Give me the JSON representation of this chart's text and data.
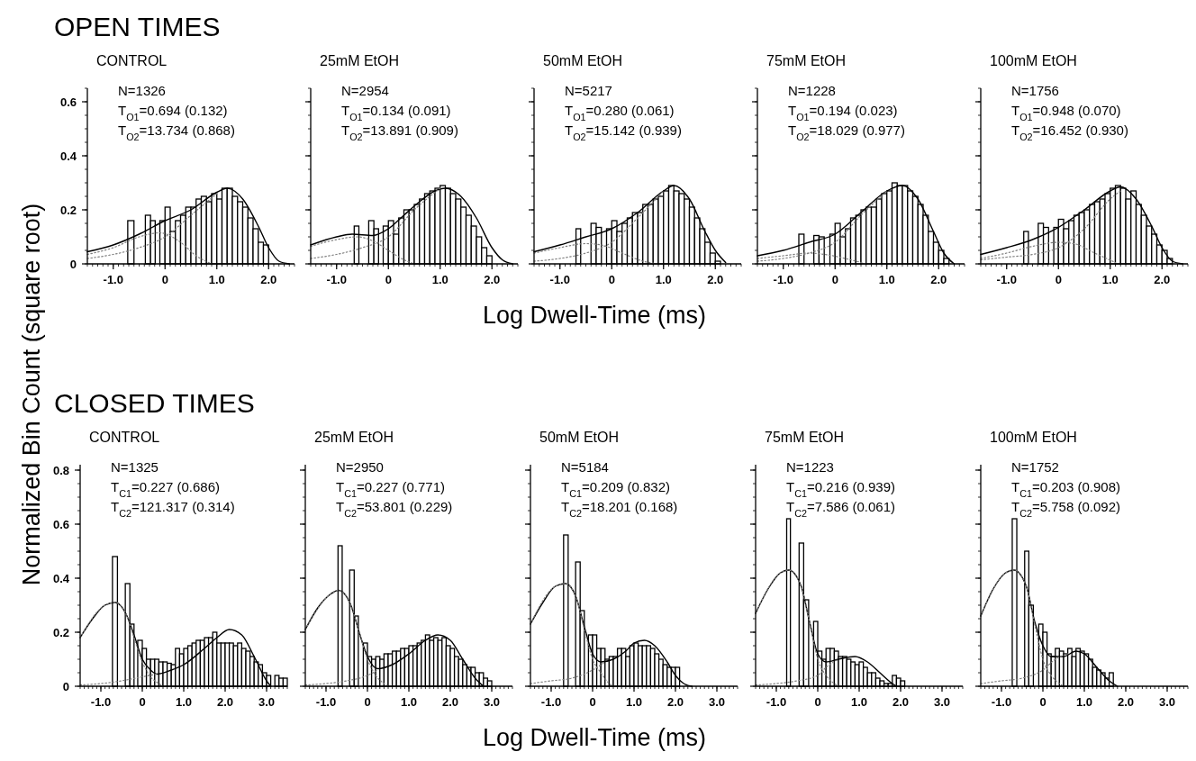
{
  "chart_data": [
    {
      "type": "histogram",
      "title": "OPEN TIMES",
      "subtitle": "CONTROL",
      "ylabel": "Normalized Bin Count (square root)",
      "annotations": [
        "N=1326",
        "T$_{O1}$=0.694 (0.132)",
        "T$_{O2}$=13.734 (0.868)"
      ],
      "xlim": [
        -1.5,
        2.5
      ],
      "xticks": [
        {
          "value": -1,
          "label": "-1.0"
        },
        {
          "value": 0,
          "label": "0"
        },
        {
          "value": 1,
          "label": "1.0"
        },
        {
          "value": 2,
          "label": "2.0"
        }
      ],
      "ylim": [
        0,
        0.65
      ],
      "yticks": [
        0,
        0.2,
        0.4,
        0.6
      ],
      "series": [
        {
          "color": "#000000",
          "bins": [
            -0.72,
            -0.6,
            -0.38,
            -0.28,
            -0.19,
            -0.1,
            0,
            0.1,
            0.2,
            0.3,
            0.4,
            0.5,
            0.6,
            0.7,
            0.8,
            0.9,
            1.0,
            1.1,
            1.2,
            1.3,
            1.4,
            1.5,
            1.6,
            1.7,
            1.8,
            1.9,
            2.0
          ],
          "values": [
            0.16,
            0,
            0.18,
            0.16,
            0,
            0.16,
            0.21,
            0.12,
            0.16,
            0.18,
            0.21,
            0.21,
            0.24,
            0.25,
            0.23,
            0.26,
            0.24,
            0.28,
            0.28,
            0.25,
            0.23,
            0.21,
            0.17,
            0.13,
            0.08,
            0.07
          ]
        },
        {
          "type": "line",
          "color": "#000000",
          "line_style": "solid",
          "x": [
            -1.5,
            -1.0,
            -0.5,
            0,
            0.5,
            1.0,
            1.2,
            1.5,
            1.8,
            2.0,
            2.2,
            2.4
          ],
          "values": [
            0.045,
            0.07,
            0.11,
            0.16,
            0.2,
            0.265,
            0.28,
            0.24,
            0.14,
            0.06,
            0.01,
            0
          ]
        },
        {
          "type": "line",
          "color": "#808080",
          "line_style": "dotted",
          "x": [
            -1.5,
            -1.0,
            -0.5,
            -0.1,
            0.3,
            0.6,
            0.9
          ],
          "values": [
            0.035,
            0.06,
            0.1,
            0.115,
            0.08,
            0.03,
            0
          ]
        },
        {
          "type": "line",
          "color": "#808080",
          "line_style": "dotted",
          "x": [
            -1.5,
            -1.0,
            -0.5,
            0,
            0.5,
            1.0
          ],
          "values": [
            0.02,
            0.035,
            0.06,
            0.1,
            0.18,
            0.26
          ]
        }
      ]
    },
    {
      "type": "histogram",
      "title": "25mM EtOH",
      "annotations": [
        "N=2954",
        "T$_{O1}$=0.134 (0.091)",
        "T$_{O2}$=13.891 (0.909)"
      ],
      "xlim": [
        -1.5,
        2.5
      ],
      "xticks": [
        {
          "value": -1,
          "label": "-1.0"
        },
        {
          "value": 0,
          "label": "0"
        },
        {
          "value": 1,
          "label": "1.0"
        },
        {
          "value": 2,
          "label": "2.0"
        }
      ],
      "ylim": [
        0,
        0.65
      ],
      "yticks": [
        0,
        0.2,
        0.4,
        0.6
      ],
      "tick_labels": "x",
      "series": [
        {
          "color": "#000000",
          "bins": [
            -0.66,
            -0.57,
            -0.38,
            -0.28,
            -0.19,
            -0.1,
            0,
            0.1,
            0.2,
            0.3,
            0.4,
            0.5,
            0.6,
            0.7,
            0.8,
            0.9,
            1.0,
            1.1,
            1.2,
            1.3,
            1.4,
            1.5,
            1.6,
            1.7,
            1.8,
            1.9,
            2.0
          ],
          "values": [
            0.14,
            0,
            0.16,
            0.13,
            0,
            0.14,
            0.16,
            0.11,
            0.17,
            0.2,
            0.2,
            0.22,
            0.24,
            0.26,
            0.27,
            0.28,
            0.29,
            0.28,
            0.26,
            0.24,
            0.21,
            0.18,
            0.14,
            0.1,
            0.06,
            0.03
          ]
        },
        {
          "type": "line",
          "color": "#000000",
          "line_style": "solid",
          "x": [
            -1.5,
            -1.0,
            -0.7,
            -0.3,
            0,
            0.3,
            0.6,
            0.9,
            1.1,
            1.4,
            1.7,
            2.0,
            2.2,
            2.4
          ],
          "values": [
            0.07,
            0.1,
            0.11,
            0.105,
            0.13,
            0.18,
            0.23,
            0.27,
            0.28,
            0.25,
            0.17,
            0.06,
            0.015,
            0
          ]
        },
        {
          "type": "line",
          "color": "#808080",
          "line_style": "dotted",
          "x": [
            -1.5,
            -1.0,
            -0.6,
            -0.3,
            0,
            0.3,
            0.5
          ],
          "values": [
            0.065,
            0.09,
            0.1,
            0.085,
            0.05,
            0.015,
            0
          ]
        },
        {
          "type": "line",
          "color": "#808080",
          "line_style": "dotted",
          "x": [
            -1.5,
            -1.0,
            -0.5,
            0,
            0.5,
            1.0
          ],
          "values": [
            0.02,
            0.035,
            0.06,
            0.1,
            0.2,
            0.28
          ]
        }
      ]
    },
    {
      "type": "histogram",
      "title": "50mM EtOH",
      "xlabel": "Log Dwell-Time (ms)",
      "annotations": [
        "N=5217",
        "T$_{O1}$=0.280 (0.061)",
        "T$_{O2}$=15.142 (0.939)"
      ],
      "xlim": [
        -1.5,
        2.5
      ],
      "xticks": [
        {
          "value": -1,
          "label": "-1.0"
        },
        {
          "value": 0,
          "label": "0"
        },
        {
          "value": 1,
          "label": "1.0"
        },
        {
          "value": 2,
          "label": "2.0"
        }
      ],
      "ylim": [
        0,
        0.65
      ],
      "yticks": [
        0,
        0.2,
        0.4,
        0.6
      ],
      "tick_labels": "x",
      "series": [
        {
          "color": "#000000",
          "bins": [
            -0.69,
            -0.6,
            -0.4,
            -0.3,
            -0.2,
            -0.1,
            0,
            0.1,
            0.2,
            0.3,
            0.4,
            0.5,
            0.6,
            0.7,
            0.8,
            0.9,
            1.0,
            1.1,
            1.2,
            1.3,
            1.4,
            1.5,
            1.6,
            1.7,
            1.8,
            1.9,
            2.0,
            2.1
          ],
          "values": [
            0.13,
            0,
            0.15,
            0.135,
            0,
            0.13,
            0.16,
            0.12,
            0.15,
            0.17,
            0.19,
            0.19,
            0.22,
            0.22,
            0.24,
            0.25,
            0.27,
            0.29,
            0.27,
            0.26,
            0.24,
            0.21,
            0.17,
            0.13,
            0.08,
            0.04,
            0.01
          ]
        },
        {
          "type": "line",
          "color": "#000000",
          "line_style": "solid",
          "x": [
            -1.5,
            -1.0,
            -0.5,
            0,
            0.5,
            1.0,
            1.2,
            1.5,
            1.8,
            2.0,
            2.2
          ],
          "values": [
            0.045,
            0.07,
            0.1,
            0.13,
            0.19,
            0.27,
            0.29,
            0.24,
            0.12,
            0.05,
            0.005
          ]
        },
        {
          "type": "line",
          "color": "#808080",
          "line_style": "dotted",
          "x": [
            -1.5,
            -1.0,
            -0.5,
            -0.2,
            0.2,
            0.6,
            0.9
          ],
          "values": [
            0.04,
            0.06,
            0.075,
            0.07,
            0.04,
            0.01,
            0
          ]
        },
        {
          "type": "line",
          "color": "#808080",
          "line_style": "dotted",
          "x": [
            -1.5,
            -1.0,
            -0.5,
            0,
            0.5,
            1.0
          ],
          "values": [
            0.01,
            0.02,
            0.04,
            0.08,
            0.17,
            0.27
          ]
        }
      ]
    },
    {
      "type": "histogram",
      "title": "75mM EtOH",
      "annotations": [
        "N=1228",
        "T$_{O1}$=0.194 (0.023)",
        "T$_{O2}$=18.029 (0.977)"
      ],
      "xlim": [
        -1.5,
        2.5
      ],
      "xticks": [
        {
          "value": -1,
          "label": "-1.0"
        },
        {
          "value": 0,
          "label": "0"
        },
        {
          "value": 1,
          "label": "1.0"
        },
        {
          "value": 2,
          "label": "2.0"
        }
      ],
      "ylim": [
        0,
        0.65
      ],
      "yticks": [
        0,
        0.2,
        0.4,
        0.6
      ],
      "tick_labels": "x",
      "series": [
        {
          "color": "#000000",
          "bins": [
            -0.7,
            -0.6,
            -0.41,
            -0.31,
            -0.21,
            -0.1,
            0,
            0.1,
            0.2,
            0.3,
            0.4,
            0.5,
            0.6,
            0.7,
            0.8,
            0.9,
            1.0,
            1.1,
            1.2,
            1.3,
            1.4,
            1.5,
            1.6,
            1.7,
            1.8,
            1.9,
            2.0,
            2.1,
            2.2
          ],
          "values": [
            0.11,
            0,
            0.105,
            0.1,
            0,
            0.11,
            0.15,
            0.1,
            0.13,
            0.17,
            0.18,
            0.2,
            0.21,
            0.21,
            0.24,
            0.26,
            0.27,
            0.3,
            0.29,
            0.29,
            0.27,
            0.25,
            0.22,
            0.18,
            0.12,
            0.08,
            0.05,
            0.02
          ]
        },
        {
          "type": "line",
          "color": "#000000",
          "line_style": "solid",
          "x": [
            -1.5,
            -1.0,
            -0.5,
            0,
            0.5,
            1.0,
            1.3,
            1.6,
            1.9,
            2.1,
            2.3
          ],
          "values": [
            0.03,
            0.05,
            0.08,
            0.11,
            0.19,
            0.27,
            0.29,
            0.24,
            0.12,
            0.04,
            0
          ]
        },
        {
          "type": "line",
          "color": "#808080",
          "line_style": "dotted",
          "x": [
            -1.5,
            -1.0,
            -0.5,
            -0.2,
            0.3,
            0.6
          ],
          "values": [
            0.02,
            0.03,
            0.04,
            0.035,
            0.015,
            0
          ]
        },
        {
          "type": "line",
          "color": "#808080",
          "line_style": "dotted",
          "x": [
            -1.5,
            -1.0,
            -0.5,
            0,
            0.5,
            1.0
          ],
          "values": [
            0.01,
            0.02,
            0.04,
            0.08,
            0.18,
            0.27
          ]
        }
      ]
    },
    {
      "type": "histogram",
      "title": "100mM EtOH",
      "annotations": [
        "N=1756",
        "T$_{O1}$=0.948 (0.070)",
        "T$_{O2}$=16.452 (0.930)"
      ],
      "xlim": [
        -1.5,
        2.5
      ],
      "xticks": [
        {
          "value": -1,
          "label": "-1.0"
        },
        {
          "value": 0,
          "label": "0"
        },
        {
          "value": 1,
          "label": "1.0"
        },
        {
          "value": 2,
          "label": "2.0"
        }
      ],
      "ylim": [
        0,
        0.65
      ],
      "yticks": [
        0,
        0.2,
        0.4,
        0.6
      ],
      "tick_labels": "x",
      "series": [
        {
          "color": "#000000",
          "bins": [
            -0.67,
            -0.58,
            -0.39,
            -0.29,
            -0.19,
            -0.09,
            0,
            0.1,
            0.2,
            0.3,
            0.4,
            0.5,
            0.6,
            0.7,
            0.8,
            0.9,
            1.0,
            1.1,
            1.2,
            1.3,
            1.4,
            1.5,
            1.6,
            1.7,
            1.8,
            1.9,
            2.0,
            2.1,
            2.2
          ],
          "values": [
            0.12,
            0,
            0.15,
            0.135,
            0,
            0.135,
            0.165,
            0.13,
            0.16,
            0.18,
            0.19,
            0.2,
            0.22,
            0.23,
            0.24,
            0.26,
            0.28,
            0.29,
            0.28,
            0.24,
            0.27,
            0.22,
            0.18,
            0.14,
            0.11,
            0.07,
            0.05,
            0.02
          ]
        },
        {
          "type": "line",
          "color": "#000000",
          "line_style": "solid",
          "x": [
            -1.5,
            -1.0,
            -0.5,
            0,
            0.5,
            1.0,
            1.2,
            1.5,
            1.8,
            2.0,
            2.2,
            2.4
          ],
          "values": [
            0.035,
            0.06,
            0.09,
            0.135,
            0.2,
            0.27,
            0.285,
            0.24,
            0.14,
            0.06,
            0.01,
            0
          ]
        },
        {
          "type": "line",
          "color": "#808080",
          "line_style": "dotted",
          "x": [
            -1.5,
            -1.0,
            -0.5,
            0,
            0.3,
            0.7,
            1.1
          ],
          "values": [
            0.02,
            0.04,
            0.065,
            0.08,
            0.075,
            0.04,
            0.005
          ]
        },
        {
          "type": "line",
          "color": "#808080",
          "line_style": "dotted",
          "x": [
            -1.5,
            -1.0,
            -0.5,
            0,
            0.5,
            1.0,
            1.2
          ],
          "values": [
            0.015,
            0.025,
            0.035,
            0.06,
            0.13,
            0.24,
            0.27
          ]
        }
      ]
    },
    {
      "type": "histogram",
      "title": "CLOSED TIMES",
      "subtitle": "CONTROL",
      "annotations": [
        "N=1325",
        "T$_{C1}$=0.227 (0.686)",
        "T$_{C2}$=121.317 (0.314)"
      ],
      "xlim": [
        -1.5,
        3.5
      ],
      "xticks": [
        {
          "value": -1,
          "label": "-1.0"
        },
        {
          "value": 0,
          "label": "0"
        },
        {
          "value": 1,
          "label": "1.0"
        },
        {
          "value": 2,
          "label": "2.0"
        },
        {
          "value": 3,
          "label": "3.0"
        }
      ],
      "ylim": [
        0,
        0.82
      ],
      "yticks": [
        0,
        0.2,
        0.4,
        0.6,
        0.8
      ],
      "series": [
        {
          "color": "#000000",
          "bins": [
            -0.72,
            -0.6,
            -0.41,
            -0.3,
            -0.2,
            -0.11,
            0,
            0.1,
            0.2,
            0.3,
            0.4,
            0.5,
            0.6,
            0.7,
            0.8,
            0.9,
            1.0,
            1.1,
            1.2,
            1.3,
            1.4,
            1.5,
            1.6,
            1.7,
            1.8,
            1.9,
            2.0,
            2.1,
            2.2,
            2.3,
            2.4,
            2.5,
            2.6,
            2.7,
            2.8,
            2.9,
            3.0,
            3.1,
            3.2,
            3.3,
            3.4,
            3.5
          ],
          "values": [
            0.48,
            0,
            0.38,
            0.23,
            0,
            0.17,
            0.14,
            0.1,
            0.1,
            0.1,
            0.09,
            0.09,
            0.085,
            0.08,
            0.14,
            0.12,
            0.14,
            0.15,
            0.16,
            0.17,
            0.17,
            0.18,
            0.18,
            0.2,
            0.16,
            0.16,
            0.16,
            0.16,
            0.15,
            0.16,
            0.14,
            0.13,
            0.11,
            0.09,
            0.08,
            0.05,
            0.04,
            0,
            0.04,
            0.03,
            0.03
          ]
        },
        {
          "type": "line",
          "color": "#000000",
          "line_style": "solid",
          "x": [
            -1.5,
            -1.2,
            -0.9,
            -0.65,
            -0.4,
            -0.2,
            0,
            0.2,
            0.35,
            0.7,
            1.0,
            1.5,
            1.8,
            2.1,
            2.4,
            2.7,
            3.0,
            3.1
          ],
          "values": [
            0.18,
            0.25,
            0.3,
            0.31,
            0.27,
            0.19,
            0.1,
            0.06,
            0.045,
            0.06,
            0.08,
            0.14,
            0.18,
            0.21,
            0.19,
            0.11,
            0.02,
            0
          ]
        },
        {
          "type": "line",
          "color": "#808080",
          "line_style": "dotted",
          "x": [
            -1.5,
            -0.9,
            -0.65,
            -0.4,
            -0.2,
            0,
            0.2,
            0.4,
            0.5
          ],
          "values": [
            0.18,
            0.3,
            0.31,
            0.27,
            0.18,
            0.09,
            0.035,
            0.01,
            0
          ]
        },
        {
          "type": "line",
          "color": "#808080",
          "line_style": "dotted",
          "x": [
            -1.5,
            -1.0,
            -0.5,
            0,
            0.35
          ],
          "values": [
            0.005,
            0.01,
            0.02,
            0.035,
            0.045
          ]
        }
      ]
    },
    {
      "type": "histogram",
      "title": "25mM EtOH",
      "annotations": [
        "N=2950",
        "T$_{C1}$=0.227 (0.771)",
        "T$_{C2}$=53.801 (0.229)"
      ],
      "xlim": [
        -1.5,
        3.5
      ],
      "xticks": [
        {
          "value": -1,
          "label": "-1.0"
        },
        {
          "value": 0,
          "label": "0"
        },
        {
          "value": 1,
          "label": "1.0"
        },
        {
          "value": 2,
          "label": "2.0"
        },
        {
          "value": 3,
          "label": "3.0"
        }
      ],
      "ylim": [
        0,
        0.82
      ],
      "yticks": [
        0,
        0.2,
        0.4,
        0.6,
        0.8
      ],
      "tick_labels": "x",
      "series": [
        {
          "color": "#000000",
          "bins": [
            -0.71,
            -0.61,
            -0.43,
            -0.32,
            -0.22,
            -0.1,
            0,
            0.1,
            0.2,
            0.3,
            0.4,
            0.5,
            0.6,
            0.7,
            0.8,
            0.9,
            1.0,
            1.1,
            1.2,
            1.3,
            1.4,
            1.5,
            1.6,
            1.7,
            1.8,
            1.9,
            2.0,
            2.1,
            2.2,
            2.3,
            2.4,
            2.5,
            2.6,
            2.7,
            2.8,
            2.9,
            3.0
          ],
          "values": [
            0.52,
            0,
            0.43,
            0.26,
            0,
            0.16,
            0.11,
            0.1,
            0.11,
            0.1,
            0.12,
            0.12,
            0.13,
            0.13,
            0.14,
            0.14,
            0.15,
            0.15,
            0.16,
            0.17,
            0.19,
            0.17,
            0.18,
            0.17,
            0.18,
            0.15,
            0.14,
            0.11,
            0.1,
            0.08,
            0.07,
            0.07,
            0.05,
            0.05,
            0.03,
            0.02
          ]
        },
        {
          "type": "line",
          "color": "#000000",
          "line_style": "solid",
          "x": [
            -1.5,
            -1.2,
            -0.9,
            -0.7,
            -0.4,
            -0.2,
            0,
            0.25,
            0.6,
            1.0,
            1.4,
            1.7,
            2.0,
            2.3,
            2.6,
            2.8
          ],
          "values": [
            0.21,
            0.29,
            0.34,
            0.355,
            0.3,
            0.2,
            0.11,
            0.065,
            0.08,
            0.12,
            0.17,
            0.19,
            0.17,
            0.1,
            0.03,
            0
          ]
        },
        {
          "type": "line",
          "color": "#808080",
          "line_style": "dotted",
          "x": [
            -1.5,
            -0.9,
            -0.7,
            -0.4,
            -0.2,
            0,
            0.2,
            0.4,
            0.5
          ],
          "values": [
            0.21,
            0.34,
            0.355,
            0.3,
            0.2,
            0.1,
            0.04,
            0.01,
            0
          ]
        },
        {
          "type": "line",
          "color": "#808080",
          "line_style": "dotted",
          "x": [
            -1.5,
            -1.0,
            -0.5,
            0,
            0.25
          ],
          "values": [
            0.005,
            0.01,
            0.02,
            0.04,
            0.06
          ]
        }
      ]
    },
    {
      "type": "histogram",
      "title": "50mM EtOH",
      "xlabel": "Log Dwell-Time (ms)",
      "annotations": [
        "N=5184",
        "T$_{C1}$=0.209 (0.832)",
        "T$_{C2}$=18.201 (0.168)"
      ],
      "xlim": [
        -1.5,
        3.5
      ],
      "xticks": [
        {
          "value": -1,
          "label": "-1.0"
        },
        {
          "value": 0,
          "label": "0"
        },
        {
          "value": 1,
          "label": "1.0"
        },
        {
          "value": 2,
          "label": "2.0"
        },
        {
          "value": 3,
          "label": "3.0"
        }
      ],
      "ylim": [
        0,
        0.82
      ],
      "yticks": [
        0,
        0.2,
        0.4,
        0.6,
        0.8
      ],
      "tick_labels": "x",
      "series": [
        {
          "color": "#000000",
          "bins": [
            -0.7,
            -0.59,
            -0.41,
            -0.3,
            -0.2,
            -0.1,
            0,
            0.1,
            0.2,
            0.3,
            0.4,
            0.5,
            0.6,
            0.7,
            0.8,
            0.9,
            1.0,
            1.1,
            1.2,
            1.3,
            1.4,
            1.5,
            1.6,
            1.7,
            1.8,
            1.9,
            2.0,
            2.1
          ],
          "values": [
            0.56,
            0,
            0.46,
            0.28,
            0,
            0.19,
            0.19,
            0.14,
            0.14,
            0.1,
            0.11,
            0.11,
            0.14,
            0.14,
            0.11,
            0.15,
            0.16,
            0.15,
            0.15,
            0.15,
            0.14,
            0.12,
            0.1,
            0.08,
            0.07,
            0.07,
            0.07
          ]
        },
        {
          "type": "line",
          "color": "#000000",
          "line_style": "solid",
          "x": [
            -1.5,
            -1.2,
            -0.9,
            -0.65,
            -0.4,
            -0.2,
            0,
            0.2,
            0.5,
            0.8,
            1.0,
            1.25,
            1.5,
            1.8,
            2.0,
            2.2,
            2.4
          ],
          "values": [
            0.23,
            0.31,
            0.37,
            0.38,
            0.33,
            0.22,
            0.12,
            0.09,
            0.1,
            0.13,
            0.16,
            0.17,
            0.15,
            0.09,
            0.04,
            0.01,
            0
          ]
        },
        {
          "type": "line",
          "color": "#808080",
          "line_style": "dotted",
          "x": [
            -1.5,
            -0.9,
            -0.65,
            -0.4,
            -0.2,
            0,
            0.2,
            0.4,
            0.5
          ],
          "values": [
            0.23,
            0.37,
            0.38,
            0.33,
            0.21,
            0.1,
            0.05,
            0.01,
            0
          ]
        },
        {
          "type": "line",
          "color": "#808080",
          "line_style": "dotted",
          "x": [
            -1.5,
            -1.0,
            -0.5,
            0,
            0.3
          ],
          "values": [
            0.01,
            0.02,
            0.03,
            0.06,
            0.09
          ]
        }
      ]
    },
    {
      "type": "histogram",
      "title": "75mM EtOH",
      "annotations": [
        "N=1223",
        "T$_{C1}$=0.216 (0.939)",
        "T$_{C2}$=7.586 (0.061)"
      ],
      "xlim": [
        -1.5,
        3.5
      ],
      "xticks": [
        {
          "value": -1,
          "label": "-1.0"
        },
        {
          "value": 0,
          "label": "0"
        },
        {
          "value": 1,
          "label": "1.0"
        },
        {
          "value": 2,
          "label": "2.0"
        },
        {
          "value": 3,
          "label": "3.0"
        }
      ],
      "ylim": [
        0,
        0.82
      ],
      "yticks": [
        0,
        0.2,
        0.4,
        0.6,
        0.8
      ],
      "tick_labels": "x",
      "series": [
        {
          "color": "#000000",
          "bins": [
            -0.75,
            -0.66,
            -0.45,
            -0.34,
            -0.22,
            -0.1,
            0,
            0.1,
            0.2,
            0.3,
            0.4,
            0.5,
            0.6,
            0.7,
            0.8,
            0.9,
            1.0,
            1.1,
            1.2,
            1.3,
            1.4,
            1.5,
            1.6,
            1.7,
            1.8,
            1.9,
            2.0,
            2.1
          ],
          "values": [
            0.62,
            0,
            0.53,
            0.32,
            0,
            0.24,
            0.13,
            0.1,
            0.14,
            0.14,
            0.13,
            0.11,
            0.11,
            0.1,
            0.09,
            0.08,
            0.09,
            0.07,
            0.05,
            0.05,
            0.03,
            0.02,
            0.01,
            0.01,
            0.04,
            0.03,
            0.02
          ]
        },
        {
          "type": "line",
          "color": "#000000",
          "line_style": "solid",
          "x": [
            -1.5,
            -1.2,
            -0.9,
            -0.7,
            -0.4,
            -0.2,
            0,
            0.2,
            0.5,
            0.9,
            1.2,
            1.5,
            1.8,
            1.9
          ],
          "values": [
            0.27,
            0.36,
            0.42,
            0.43,
            0.37,
            0.24,
            0.12,
            0.09,
            0.1,
            0.11,
            0.09,
            0.05,
            0.01,
            0
          ]
        },
        {
          "type": "line",
          "color": "#808080",
          "line_style": "dotted",
          "x": [
            -1.5,
            -0.9,
            -0.7,
            -0.4,
            -0.2,
            0,
            0.2,
            0.4,
            0.5
          ],
          "values": [
            0.27,
            0.42,
            0.43,
            0.37,
            0.24,
            0.1,
            0.04,
            0.01,
            0
          ]
        },
        {
          "type": "line",
          "color": "#808080",
          "line_style": "dotted",
          "x": [
            -1.5,
            -1.0,
            -0.5,
            0,
            0.2,
            0.5
          ],
          "values": [
            0.005,
            0.01,
            0.02,
            0.04,
            0.07,
            0.1
          ]
        }
      ]
    },
    {
      "type": "histogram",
      "title": "100mM EtOH",
      "annotations": [
        "N=1752",
        "T$_{C1}$=0.203 (0.908)",
        "T$_{C2}$=5.758 (0.092)"
      ],
      "xlim": [
        -1.5,
        3.5
      ],
      "xticks": [
        {
          "value": -1,
          "label": "-1.0"
        },
        {
          "value": 0,
          "label": "0"
        },
        {
          "value": 1,
          "label": "1.0"
        },
        {
          "value": 2,
          "label": "2.0"
        },
        {
          "value": 3,
          "label": "3.0"
        }
      ],
      "ylim": [
        0,
        0.82
      ],
      "yticks": [
        0,
        0.2,
        0.4,
        0.6,
        0.8
      ],
      "tick_labels": "x",
      "series": [
        {
          "color": "#000000",
          "bins": [
            -0.74,
            -0.63,
            -0.44,
            -0.34,
            -0.23,
            -0.1,
            0,
            0.1,
            0.2,
            0.3,
            0.4,
            0.5,
            0.6,
            0.7,
            0.8,
            0.9,
            1.0,
            1.1,
            1.2,
            1.3,
            1.4,
            1.5,
            1.6,
            1.7
          ],
          "values": [
            0.62,
            0,
            0.5,
            0.3,
            0,
            0.23,
            0.2,
            0.12,
            0.11,
            0.14,
            0.13,
            0.12,
            0.14,
            0.11,
            0.14,
            0.13,
            0.12,
            0.1,
            0.07,
            0.06,
            0.05,
            0.03,
            0.05
          ]
        },
        {
          "type": "line",
          "color": "#000000",
          "line_style": "solid",
          "x": [
            -1.5,
            -1.2,
            -0.9,
            -0.7,
            -0.4,
            -0.2,
            0,
            0.2,
            0.5,
            0.8,
            1.0,
            1.3,
            1.6,
            1.8
          ],
          "values": [
            0.26,
            0.36,
            0.42,
            0.43,
            0.37,
            0.24,
            0.15,
            0.11,
            0.11,
            0.13,
            0.12,
            0.07,
            0.02,
            0
          ]
        },
        {
          "type": "line",
          "color": "#808080",
          "line_style": "dotted",
          "x": [
            -1.5,
            -0.9,
            -0.7,
            -0.4,
            -0.2,
            0,
            0.2,
            0.4,
            0.5
          ],
          "values": [
            0.26,
            0.42,
            0.43,
            0.37,
            0.23,
            0.1,
            0.04,
            0.01,
            0
          ]
        },
        {
          "type": "line",
          "color": "#808080",
          "line_style": "dotted",
          "x": [
            -1.5,
            -1.0,
            -0.5,
            0,
            0.3,
            0.6
          ],
          "values": [
            0.01,
            0.02,
            0.03,
            0.06,
            0.1,
            0.12
          ]
        }
      ]
    }
  ]
}
